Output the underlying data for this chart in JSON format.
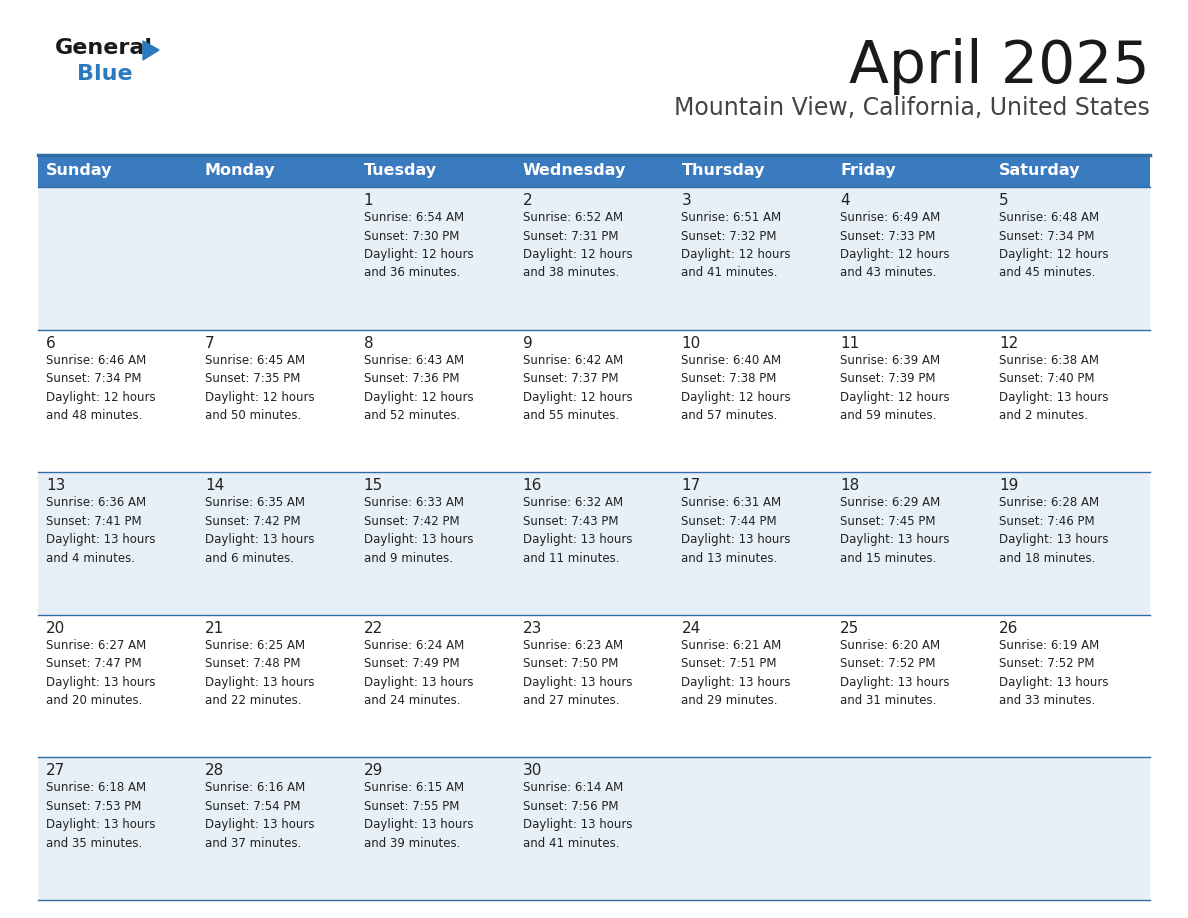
{
  "title": "April 2025",
  "subtitle": "Mountain View, California, United States",
  "days_of_week": [
    "Sunday",
    "Monday",
    "Tuesday",
    "Wednesday",
    "Thursday",
    "Friday",
    "Saturday"
  ],
  "header_bg": "#3a7abf",
  "header_text": "#ffffff",
  "row_bg_light": "#e8f0f7",
  "row_bg_white": "#ffffff",
  "border_color": "#2e6da4",
  "text_color": "#222222",
  "calendar": [
    [
      {
        "day": "",
        "info": ""
      },
      {
        "day": "",
        "info": ""
      },
      {
        "day": "1",
        "info": "Sunrise: 6:54 AM\nSunset: 7:30 PM\nDaylight: 12 hours\nand 36 minutes."
      },
      {
        "day": "2",
        "info": "Sunrise: 6:52 AM\nSunset: 7:31 PM\nDaylight: 12 hours\nand 38 minutes."
      },
      {
        "day": "3",
        "info": "Sunrise: 6:51 AM\nSunset: 7:32 PM\nDaylight: 12 hours\nand 41 minutes."
      },
      {
        "day": "4",
        "info": "Sunrise: 6:49 AM\nSunset: 7:33 PM\nDaylight: 12 hours\nand 43 minutes."
      },
      {
        "day": "5",
        "info": "Sunrise: 6:48 AM\nSunset: 7:34 PM\nDaylight: 12 hours\nand 45 minutes."
      }
    ],
    [
      {
        "day": "6",
        "info": "Sunrise: 6:46 AM\nSunset: 7:34 PM\nDaylight: 12 hours\nand 48 minutes."
      },
      {
        "day": "7",
        "info": "Sunrise: 6:45 AM\nSunset: 7:35 PM\nDaylight: 12 hours\nand 50 minutes."
      },
      {
        "day": "8",
        "info": "Sunrise: 6:43 AM\nSunset: 7:36 PM\nDaylight: 12 hours\nand 52 minutes."
      },
      {
        "day": "9",
        "info": "Sunrise: 6:42 AM\nSunset: 7:37 PM\nDaylight: 12 hours\nand 55 minutes."
      },
      {
        "day": "10",
        "info": "Sunrise: 6:40 AM\nSunset: 7:38 PM\nDaylight: 12 hours\nand 57 minutes."
      },
      {
        "day": "11",
        "info": "Sunrise: 6:39 AM\nSunset: 7:39 PM\nDaylight: 12 hours\nand 59 minutes."
      },
      {
        "day": "12",
        "info": "Sunrise: 6:38 AM\nSunset: 7:40 PM\nDaylight: 13 hours\nand 2 minutes."
      }
    ],
    [
      {
        "day": "13",
        "info": "Sunrise: 6:36 AM\nSunset: 7:41 PM\nDaylight: 13 hours\nand 4 minutes."
      },
      {
        "day": "14",
        "info": "Sunrise: 6:35 AM\nSunset: 7:42 PM\nDaylight: 13 hours\nand 6 minutes."
      },
      {
        "day": "15",
        "info": "Sunrise: 6:33 AM\nSunset: 7:42 PM\nDaylight: 13 hours\nand 9 minutes."
      },
      {
        "day": "16",
        "info": "Sunrise: 6:32 AM\nSunset: 7:43 PM\nDaylight: 13 hours\nand 11 minutes."
      },
      {
        "day": "17",
        "info": "Sunrise: 6:31 AM\nSunset: 7:44 PM\nDaylight: 13 hours\nand 13 minutes."
      },
      {
        "day": "18",
        "info": "Sunrise: 6:29 AM\nSunset: 7:45 PM\nDaylight: 13 hours\nand 15 minutes."
      },
      {
        "day": "19",
        "info": "Sunrise: 6:28 AM\nSunset: 7:46 PM\nDaylight: 13 hours\nand 18 minutes."
      }
    ],
    [
      {
        "day": "20",
        "info": "Sunrise: 6:27 AM\nSunset: 7:47 PM\nDaylight: 13 hours\nand 20 minutes."
      },
      {
        "day": "21",
        "info": "Sunrise: 6:25 AM\nSunset: 7:48 PM\nDaylight: 13 hours\nand 22 minutes."
      },
      {
        "day": "22",
        "info": "Sunrise: 6:24 AM\nSunset: 7:49 PM\nDaylight: 13 hours\nand 24 minutes."
      },
      {
        "day": "23",
        "info": "Sunrise: 6:23 AM\nSunset: 7:50 PM\nDaylight: 13 hours\nand 27 minutes."
      },
      {
        "day": "24",
        "info": "Sunrise: 6:21 AM\nSunset: 7:51 PM\nDaylight: 13 hours\nand 29 minutes."
      },
      {
        "day": "25",
        "info": "Sunrise: 6:20 AM\nSunset: 7:52 PM\nDaylight: 13 hours\nand 31 minutes."
      },
      {
        "day": "26",
        "info": "Sunrise: 6:19 AM\nSunset: 7:52 PM\nDaylight: 13 hours\nand 33 minutes."
      }
    ],
    [
      {
        "day": "27",
        "info": "Sunrise: 6:18 AM\nSunset: 7:53 PM\nDaylight: 13 hours\nand 35 minutes."
      },
      {
        "day": "28",
        "info": "Sunrise: 6:16 AM\nSunset: 7:54 PM\nDaylight: 13 hours\nand 37 minutes."
      },
      {
        "day": "29",
        "info": "Sunrise: 6:15 AM\nSunset: 7:55 PM\nDaylight: 13 hours\nand 39 minutes."
      },
      {
        "day": "30",
        "info": "Sunrise: 6:14 AM\nSunset: 7:56 PM\nDaylight: 13 hours\nand 41 minutes."
      },
      {
        "day": "",
        "info": ""
      },
      {
        "day": "",
        "info": ""
      },
      {
        "day": "",
        "info": ""
      }
    ]
  ],
  "logo_color_general": "#1a1a1a",
  "logo_color_blue": "#2a7abf",
  "logo_triangle_color": "#2a7abf",
  "title_fontsize": 42,
  "subtitle_fontsize": 17,
  "header_fontsize": 11.5,
  "day_num_fontsize": 11,
  "info_fontsize": 8.5
}
